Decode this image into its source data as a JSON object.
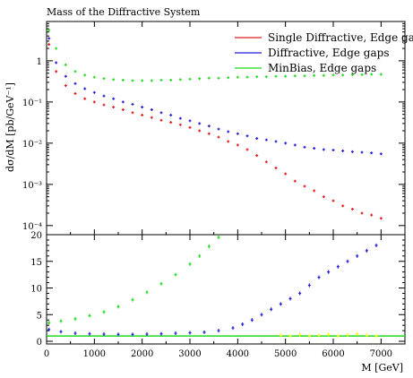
{
  "chart_data": {
    "type": "scatter",
    "title": "Mass of the Diffractive System",
    "xlabel": "M [GeV]",
    "ylabel_top": "dσ/dM [pb/GeV⁻¹]",
    "xlim": [
      0,
      7500
    ],
    "x_ticks": [
      "0",
      "1000",
      "2000",
      "3000",
      "4000",
      "5000",
      "6000",
      "7000"
    ],
    "x_tick_values": [
      0,
      1000,
      2000,
      3000,
      4000,
      5000,
      6000,
      7000
    ],
    "top_panel": {
      "yscale": "log",
      "ylim": [
        6e-05,
        9
      ],
      "y_ticks": [
        {
          "value": 1,
          "label": "1"
        },
        {
          "value": 0.1,
          "label": "10⁻¹"
        },
        {
          "value": 0.01,
          "label": "10⁻²"
        },
        {
          "value": 0.001,
          "label": "10⁻³"
        },
        {
          "value": 0.0001,
          "label": "10⁻⁴"
        }
      ],
      "legend_position": "top-right",
      "series": [
        {
          "name": "Single Diffractive, Edge gaps",
          "color": "#e31a1c",
          "x": [
            50,
            200,
            400,
            600,
            800,
            1000,
            1200,
            1400,
            1600,
            1800,
            2000,
            2200,
            2400,
            2600,
            2800,
            3000,
            3200,
            3400,
            3600,
            3800,
            4000,
            4200,
            4400,
            4600,
            4800,
            5000,
            5200,
            5400,
            5600,
            5800,
            6000,
            6200,
            6400,
            6600,
            6800,
            7000
          ],
          "y": [
            2.5,
            0.55,
            0.25,
            0.16,
            0.12,
            0.1,
            0.085,
            0.075,
            0.065,
            0.055,
            0.048,
            0.042,
            0.036,
            0.032,
            0.028,
            0.024,
            0.02,
            0.017,
            0.014,
            0.011,
            0.009,
            0.007,
            0.005,
            0.0035,
            0.0025,
            0.0018,
            0.0012,
            0.0009,
            0.0007,
            0.0005,
            0.0004,
            0.0003,
            0.00025,
            0.0002,
            0.00018,
            0.00015
          ]
        },
        {
          "name": "Diffractive, Edge gaps",
          "color": "#1f1fd6",
          "x": [
            50,
            200,
            400,
            600,
            800,
            1000,
            1200,
            1400,
            1600,
            1800,
            2000,
            2200,
            2400,
            2600,
            2800,
            3000,
            3200,
            3400,
            3600,
            3800,
            4000,
            4200,
            4400,
            4600,
            4800,
            5000,
            5200,
            5400,
            5600,
            5800,
            6000,
            6200,
            6400,
            6600,
            6800,
            7000
          ],
          "y": [
            3.5,
            0.9,
            0.42,
            0.28,
            0.21,
            0.17,
            0.14,
            0.12,
            0.1,
            0.088,
            0.075,
            0.065,
            0.055,
            0.048,
            0.04,
            0.035,
            0.03,
            0.026,
            0.022,
            0.019,
            0.017,
            0.015,
            0.013,
            0.012,
            0.011,
            0.01,
            0.009,
            0.008,
            0.0075,
            0.007,
            0.0068,
            0.0065,
            0.0062,
            0.006,
            0.0058,
            0.0055
          ]
        },
        {
          "name": "MinBias, Edge gaps",
          "color": "#1fdc1f",
          "x": [
            50,
            200,
            400,
            600,
            800,
            1000,
            1200,
            1400,
            1600,
            1800,
            2000,
            2200,
            2400,
            2600,
            2800,
            3000,
            3200,
            3400,
            3600,
            3800,
            4000,
            4200,
            4400,
            4600,
            4800,
            5000,
            5200,
            5400,
            5600,
            5800,
            6000,
            6200,
            6400,
            6600,
            6800,
            7000
          ],
          "y": [
            5.5,
            2.0,
            0.8,
            0.55,
            0.45,
            0.4,
            0.37,
            0.35,
            0.34,
            0.33,
            0.33,
            0.33,
            0.34,
            0.34,
            0.35,
            0.36,
            0.37,
            0.38,
            0.38,
            0.39,
            0.4,
            0.4,
            0.41,
            0.41,
            0.42,
            0.42,
            0.43,
            0.43,
            0.44,
            0.44,
            0.45,
            0.45,
            0.46,
            0.46,
            0.47,
            0.47
          ]
        }
      ]
    },
    "ratio_panel": {
      "yscale": "linear",
      "ylim": [
        -0.5,
        20
      ],
      "y_ticks": [
        {
          "value": 0,
          "label": "0"
        },
        {
          "value": 5,
          "label": "5"
        },
        {
          "value": 10,
          "label": "10"
        },
        {
          "value": 15,
          "label": "15"
        },
        {
          "value": 20,
          "label": "20"
        }
      ],
      "reference_line": {
        "value": 1,
        "color": "#1fdc1f"
      },
      "series": [
        {
          "name": "Diffractive, Edge gaps",
          "color": "#1f1fd6",
          "x": [
            50,
            300,
            600,
            900,
            1200,
            1500,
            1800,
            2100,
            2400,
            2700,
            3000,
            3300,
            3600,
            3900,
            4100,
            4300,
            4500,
            4700,
            4900,
            5100,
            5300,
            5500,
            5700,
            5900,
            6100,
            6300,
            6500,
            6700,
            6900
          ],
          "y": [
            2.2,
            1.8,
            1.5,
            1.4,
            1.35,
            1.3,
            1.3,
            1.35,
            1.4,
            1.5,
            1.6,
            1.7,
            2.0,
            2.5,
            3.2,
            4.0,
            5.0,
            6.0,
            7.0,
            8.0,
            9.0,
            10.5,
            12.0,
            13.0,
            14.0,
            15.0,
            16.0,
            17.0,
            18.0
          ]
        },
        {
          "name": "MinBias, Edge gaps",
          "color": "#1fdc1f",
          "x": [
            50,
            300,
            600,
            900,
            1200,
            1500,
            1800,
            2100,
            2400,
            2700,
            3000,
            3200,
            3400,
            3600
          ],
          "y": [
            3.5,
            3.8,
            4.2,
            4.8,
            5.5,
            6.5,
            7.8,
            9.2,
            10.8,
            12.5,
            14.5,
            16.0,
            17.8,
            19.5
          ]
        },
        {
          "name": "Single Diffractive, Edge gaps",
          "color": "#ffff00",
          "x": [
            4900,
            5100,
            5300,
            5500,
            5700,
            5900,
            6100,
            6300,
            6500,
            6700,
            6900
          ],
          "y": [
            1.1,
            1.0,
            1.2,
            1.0,
            1.1,
            1.3,
            1.0,
            1.2,
            1.4,
            1.1,
            1.0
          ]
        }
      ]
    }
  }
}
